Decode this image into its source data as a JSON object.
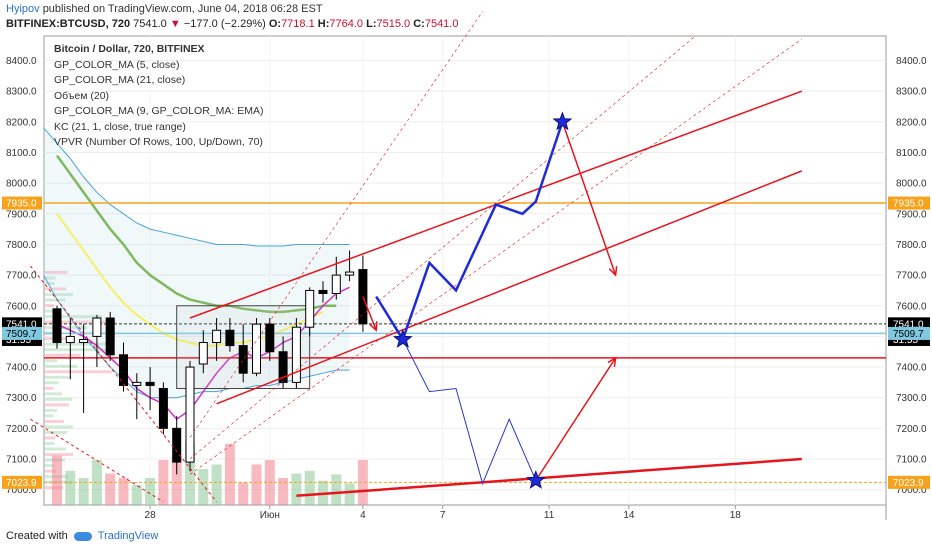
{
  "header": {
    "author": "Hyipov",
    "published": "published on TradingView.com, June 04, 2018 06:28 EST",
    "symbol": "BITFINEX:BTCUSD, 720",
    "last": "7541.0",
    "change": "−177.0 (−2.29%)",
    "o_label": "O:",
    "o_val": "7718.1",
    "h_label": "H:",
    "h_val": "7764.0",
    "l_label": "L:",
    "l_val": "7515.0",
    "c_label": "C:",
    "c_val": "7541.0"
  },
  "legend": [
    "Bitcoin / Dollar, 720, BITFINEX",
    "GP_COLOR_MA (5, close)",
    "GP_COLOR_MA (21, close)",
    "Объем (20)",
    "GP_COLOR_MA (9, GP_COLOR_MA: EMA)",
    "KC (21, 1, close, true range)",
    "VPVR (Number Of Rows, 100, Up/Down, 70)"
  ],
  "footer": {
    "created": "Created with",
    "brand": "TradingView"
  },
  "colors": {
    "up": "#ffffff",
    "down": "#000000",
    "red": "#e8141c",
    "blue": "#1f2bd6",
    "orange": "#f7a21b",
    "grid": "#eeeeee"
  },
  "chart_data": {
    "type": "candlestick",
    "y_ticks": [
      7000,
      7100,
      7200,
      7300,
      7400,
      7500,
      7600,
      7700,
      7800,
      7900,
      8000,
      8100,
      8200,
      8300,
      8400
    ],
    "ylim": [
      6950,
      8480
    ],
    "x_ticks": [
      {
        "label": "28",
        "bar": 7
      },
      {
        "label": "Июн",
        "bar": 16
      },
      {
        "label": "4",
        "bar": 23
      },
      {
        "label": "7",
        "bar": 29
      },
      {
        "label": "11",
        "bar": 37
      },
      {
        "label": "14",
        "bar": 43
      },
      {
        "label": "18",
        "bar": 51
      }
    ],
    "price_badges": [
      {
        "label": "7935.0",
        "value": 7935,
        "color": "#f7a21b"
      },
      {
        "label": "7541.0",
        "value": 7541,
        "color": "#000000"
      },
      {
        "label": "31:55",
        "value": 7490,
        "color": "#000000"
      },
      {
        "label": "7509.7",
        "value": 7509.7,
        "color": "#7fc8e0"
      },
      {
        "label": "7023.9",
        "value": 7023.9,
        "color": "#f7a21b"
      }
    ],
    "candles": [
      {
        "bar": 0,
        "o": 7590,
        "h": 7600,
        "l": 7460,
        "c": 7480
      },
      {
        "bar": 1,
        "o": 7480,
        "h": 7560,
        "l": 7360,
        "c": 7500
      },
      {
        "bar": 2,
        "o": 7480,
        "h": 7540,
        "l": 7250,
        "c": 7490
      },
      {
        "bar": 3,
        "o": 7500,
        "h": 7570,
        "l": 7400,
        "c": 7560
      },
      {
        "bar": 4,
        "o": 7560,
        "h": 7580,
        "l": 7420,
        "c": 7440
      },
      {
        "bar": 5,
        "o": 7440,
        "h": 7480,
        "l": 7320,
        "c": 7340
      },
      {
        "bar": 6,
        "o": 7340,
        "h": 7380,
        "l": 7230,
        "c": 7350
      },
      {
        "bar": 7,
        "o": 7350,
        "h": 7400,
        "l": 7260,
        "c": 7340
      },
      {
        "bar": 8,
        "o": 7330,
        "h": 7350,
        "l": 7180,
        "c": 7200
      },
      {
        "bar": 9,
        "o": 7200,
        "h": 7240,
        "l": 7050,
        "c": 7090
      },
      {
        "bar": 10,
        "o": 7090,
        "h": 7420,
        "l": 7060,
        "c": 7400
      },
      {
        "bar": 11,
        "o": 7410,
        "h": 7520,
        "l": 7380,
        "c": 7480
      },
      {
        "bar": 12,
        "o": 7480,
        "h": 7560,
        "l": 7420,
        "c": 7520
      },
      {
        "bar": 13,
        "o": 7520,
        "h": 7560,
        "l": 7450,
        "c": 7470
      },
      {
        "bar": 14,
        "o": 7470,
        "h": 7540,
        "l": 7350,
        "c": 7380
      },
      {
        "bar": 15,
        "o": 7380,
        "h": 7560,
        "l": 7370,
        "c": 7540
      },
      {
        "bar": 16,
        "o": 7540,
        "h": 7560,
        "l": 7420,
        "c": 7450
      },
      {
        "bar": 17,
        "o": 7450,
        "h": 7500,
        "l": 7330,
        "c": 7350
      },
      {
        "bar": 18,
        "o": 7350,
        "h": 7560,
        "l": 7330,
        "c": 7530
      },
      {
        "bar": 19,
        "o": 7530,
        "h": 7660,
        "l": 7500,
        "c": 7650
      },
      {
        "bar": 20,
        "o": 7650,
        "h": 7680,
        "l": 7610,
        "c": 7640
      },
      {
        "bar": 21,
        "o": 7640,
        "h": 7760,
        "l": 7620,
        "c": 7700
      },
      {
        "bar": 22,
        "o": 7700,
        "h": 7780,
        "l": 7680,
        "c": 7710
      },
      {
        "bar": 23,
        "o": 7718.1,
        "h": 7764,
        "l": 7515,
        "c": 7541
      }
    ],
    "volumes": [
      {
        "bar": 0,
        "v": 0.55,
        "up": false
      },
      {
        "bar": 1,
        "v": 0.38,
        "up": true
      },
      {
        "bar": 2,
        "v": 0.3,
        "up": true
      },
      {
        "bar": 3,
        "v": 0.5,
        "up": true
      },
      {
        "bar": 4,
        "v": 0.35,
        "up": false
      },
      {
        "bar": 5,
        "v": 0.3,
        "up": false
      },
      {
        "bar": 6,
        "v": 0.22,
        "up": true
      },
      {
        "bar": 7,
        "v": 0.3,
        "up": true
      },
      {
        "bar": 8,
        "v": 0.5,
        "up": false
      },
      {
        "bar": 9,
        "v": 0.55,
        "up": false
      },
      {
        "bar": 10,
        "v": 0.7,
        "up": true
      },
      {
        "bar": 11,
        "v": 0.4,
        "up": true
      },
      {
        "bar": 12,
        "v": 0.45,
        "up": true
      },
      {
        "bar": 13,
        "v": 0.68,
        "up": false
      },
      {
        "bar": 14,
        "v": 0.25,
        "up": false
      },
      {
        "bar": 15,
        "v": 0.45,
        "up": false
      },
      {
        "bar": 16,
        "v": 0.5,
        "up": false
      },
      {
        "bar": 17,
        "v": 0.3,
        "up": false
      },
      {
        "bar": 18,
        "v": 0.35,
        "up": true
      },
      {
        "bar": 19,
        "v": 0.38,
        "up": true
      },
      {
        "bar": 20,
        "v": 0.27,
        "up": true
      },
      {
        "bar": 21,
        "v": 0.34,
        "up": true
      },
      {
        "bar": 22,
        "v": 0.24,
        "up": true
      },
      {
        "bar": 23,
        "v": 0.5,
        "up": false
      }
    ],
    "horizontal_lines": [
      {
        "value": 7935,
        "color": "#f7a21b",
        "dash": false
      },
      {
        "value": 7023.9,
        "color": "#f7a21b",
        "dash": true
      },
      {
        "value": 7541,
        "color": "#333333",
        "dash": true
      },
      {
        "value": 7509.7,
        "color": "#7fc8e0",
        "dash": false
      },
      {
        "value": 7430,
        "color": "#e8141c",
        "dash": false
      }
    ],
    "trend_lines": [
      {
        "from": [
          10,
          7560
        ],
        "to": [
          56,
          8300
        ],
        "color": "#e8141c",
        "w": 1.5
      },
      {
        "from": [
          12,
          7280
        ],
        "to": [
          56,
          8040
        ],
        "color": "#e8141c",
        "w": 1.5
      },
      {
        "from": [
          18,
          6980
        ],
        "to": [
          56,
          7100
        ],
        "color": "#e8141c",
        "w": 2.5
      },
      {
        "from": [
          -2,
          7730
        ],
        "to": [
          12,
          6960
        ],
        "color": "#e8141c",
        "w": 1,
        "dash": true
      },
      {
        "from": [
          -2,
          7230
        ],
        "to": [
          8,
          6960
        ],
        "color": "#e8141c",
        "w": 1,
        "dash": true
      },
      {
        "from": [
          10,
          7170
        ],
        "to": [
          32,
          8560
        ],
        "color": "#e8141c",
        "w": 0.6,
        "dash": true
      },
      {
        "from": [
          10,
          7100
        ],
        "to": [
          48,
          8480
        ],
        "color": "#e8141c",
        "w": 0.6,
        "dash": true
      },
      {
        "from": [
          10,
          7050
        ],
        "to": [
          56,
          8470
        ],
        "color": "#e8141c",
        "w": 0.6,
        "dash": true
      }
    ],
    "projection_bold": [
      [
        24,
        7630
      ],
      [
        26,
        7490
      ],
      [
        28,
        7740
      ],
      [
        30,
        7650
      ],
      [
        33,
        7930
      ],
      [
        35,
        7900
      ],
      [
        36,
        7940
      ],
      [
        38,
        8200
      ]
    ],
    "projection_thin": [
      [
        26,
        7490
      ],
      [
        28,
        7320
      ],
      [
        30,
        7330
      ],
      [
        32,
        7020
      ],
      [
        34,
        7230
      ],
      [
        36,
        7030
      ]
    ],
    "arrows": [
      {
        "from": [
          38,
          8200
        ],
        "to": [
          42,
          7700
        ]
      },
      {
        "from": [
          36,
          7030
        ],
        "to": [
          42,
          7430
        ]
      },
      {
        "from": [
          23,
          7630
        ],
        "to": [
          24,
          7520
        ]
      }
    ],
    "stars": [
      [
        26,
        7490
      ],
      [
        38,
        8200
      ],
      [
        36,
        7030
      ]
    ],
    "rect": {
      "b0": 9,
      "b1": 19,
      "v0": 7330,
      "v1": 7600
    }
  }
}
